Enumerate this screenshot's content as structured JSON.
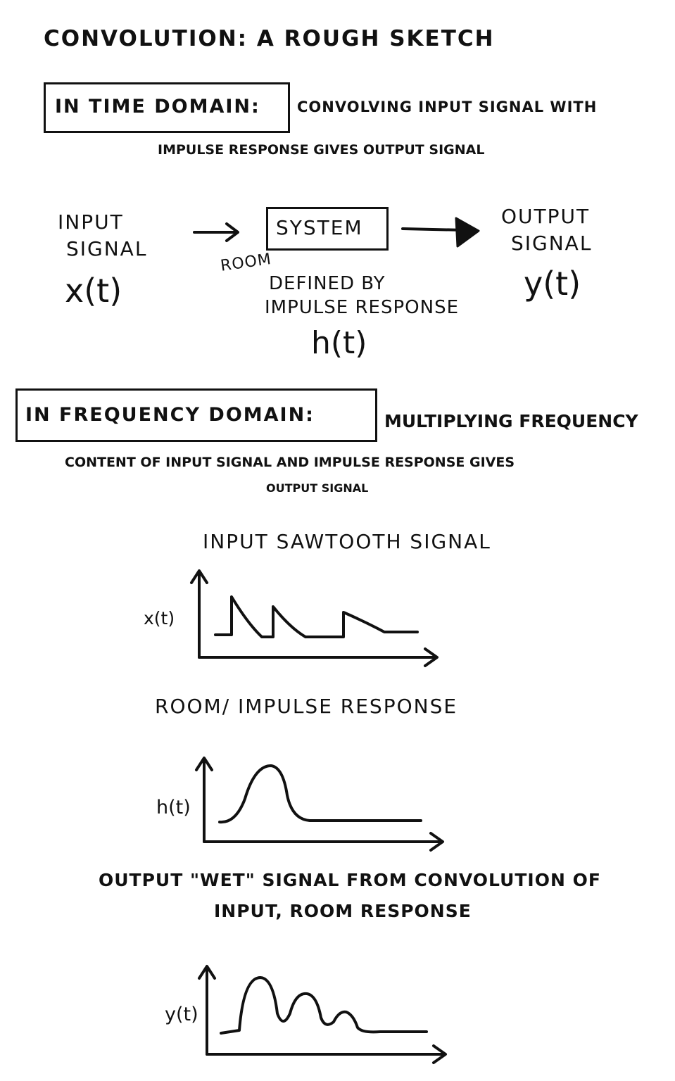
{
  "title": "CONVOLUTION: A ROUGH SKETCH",
  "time_domain": {
    "label": "IN TIME DOMAIN:",
    "text_line1": "CONVOLVING INPUT SIGNAL WITH",
    "text_line2": "IMPULSE RESPONSE GIVES OUTPUT SIGNAL"
  },
  "block_diagram": {
    "input_line1": "INPUT",
    "input_line2": "SIGNAL",
    "input_symbol": "x(t)",
    "system_label": "SYSTEM",
    "room_note": "ROOM",
    "system_desc_line1": "DEFINED BY",
    "system_desc_line2": "IMPULSE RESPONSE",
    "system_symbol": "h(t)",
    "output_line1": "OUTPUT",
    "output_line2": "SIGNAL",
    "output_symbol": "y(t)"
  },
  "frequency_domain": {
    "label": "IN FREQUENCY DOMAIN:",
    "text_line1": "MULTIPLYING FREQUENCY",
    "text_line2": "CONTENT OF INPUT SIGNAL AND IMPULSE RESPONSE GIVES",
    "text_line3": "OUTPUT SIGNAL"
  },
  "plots": [
    {
      "title": "INPUT SAWTOOTH SIGNAL",
      "ylabel": "x(t)"
    },
    {
      "title": "ROOM/ IMPULSE RESPONSE",
      "ylabel": "h(t)"
    },
    {
      "title_line1": "OUTPUT \"WET\" SIGNAL FROM CONVOLUTION OF",
      "title_line2": "INPUT, ROOM RESPONSE",
      "ylabel": "y(t)"
    }
  ]
}
